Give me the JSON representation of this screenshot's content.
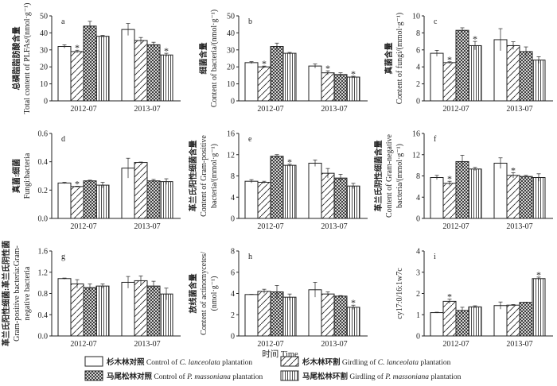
{
  "chart_data": [
    {
      "id": "a",
      "type": "bar",
      "letter": "a",
      "ylabel": [
        "总磷脂脂肪酸含量",
        "Total content of PLFAs/(nmol·g⁻¹)"
      ],
      "ylim": [
        0,
        50
      ],
      "yticks": [
        "0",
        "10",
        "20",
        "30",
        "40",
        "50"
      ],
      "categories": [
        "2012-07",
        "2013-07"
      ],
      "series": [
        {
          "name": "control_cl",
          "values": [
            32,
            42
          ],
          "errors": [
            1,
            3.5
          ],
          "sig": [
            false,
            false
          ]
        },
        {
          "name": "girdling_cl",
          "values": [
            29,
            35.5
          ],
          "errors": [
            0.8,
            1.8
          ],
          "sig": [
            true,
            false
          ]
        },
        {
          "name": "control_pm",
          "values": [
            44,
            33
          ],
          "errors": [
            2.8,
            1.5
          ],
          "sig": [
            false,
            false
          ]
        },
        {
          "name": "girdling_pm",
          "values": [
            38,
            27
          ],
          "errors": [
            0.5,
            1
          ],
          "sig": [
            false,
            true
          ]
        }
      ]
    },
    {
      "id": "b",
      "type": "bar",
      "letter": "b",
      "ylabel": [
        "细菌含量",
        "Content of bacteria/(nmol·g⁻¹)"
      ],
      "ylim": [
        0,
        50
      ],
      "yticks": [
        "0",
        "10",
        "20",
        "30",
        "40",
        "50"
      ],
      "categories": [
        "2012-07",
        "2013-07"
      ],
      "series": [
        {
          "name": "control_cl",
          "values": [
            22.5,
            20.5
          ],
          "errors": [
            0.6,
            1.2
          ],
          "sig": [
            false,
            false
          ]
        },
        {
          "name": "girdling_cl",
          "values": [
            20,
            16.5
          ],
          "errors": [
            0.5,
            1.2
          ],
          "sig": [
            true,
            true
          ]
        },
        {
          "name": "control_pm",
          "values": [
            32,
            15.5
          ],
          "errors": [
            2,
            1
          ],
          "sig": [
            false,
            false
          ]
        },
        {
          "name": "girdling_pm",
          "values": [
            28,
            14
          ],
          "errors": [
            0.5,
            0.5
          ],
          "sig": [
            false,
            true
          ]
        }
      ]
    },
    {
      "id": "c",
      "type": "bar",
      "letter": "c",
      "ylabel": [
        "真菌含量",
        "Content of fungi/(mmol·g⁻¹)"
      ],
      "ylim": [
        0,
        10
      ],
      "yticks": [
        "0",
        "2",
        "4",
        "6",
        "8",
        "10"
      ],
      "categories": [
        "2012-07",
        "2013-07"
      ],
      "series": [
        {
          "name": "control_cl",
          "values": [
            5.6,
            7.2
          ],
          "errors": [
            0.35,
            1.3
          ],
          "sig": [
            false,
            false
          ]
        },
        {
          "name": "girdling_cl",
          "values": [
            4.5,
            6.5
          ],
          "errors": [
            0.1,
            0.45
          ],
          "sig": [
            true,
            false
          ]
        },
        {
          "name": "control_pm",
          "values": [
            8.3,
            5.8
          ],
          "errors": [
            0.3,
            0.55
          ],
          "sig": [
            false,
            false
          ]
        },
        {
          "name": "girdling_pm",
          "values": [
            6.5,
            4.8
          ],
          "errors": [
            0.5,
            0.4
          ],
          "sig": [
            true,
            false
          ]
        }
      ]
    },
    {
      "id": "d",
      "type": "bar",
      "letter": "d",
      "ylabel": [
        "真菌:细菌",
        "Fungi:bacteria"
      ],
      "ylim": [
        0,
        0.6
      ],
      "yticks": [
        "0.0",
        "0.2",
        "0.4",
        "0.6"
      ],
      "categories": [
        "2012-07",
        "2013-07"
      ],
      "series": [
        {
          "name": "control_cl",
          "values": [
            0.25,
            0.355
          ],
          "errors": [
            0.005,
            0.07
          ],
          "sig": [
            false,
            false
          ]
        },
        {
          "name": "girdling_cl",
          "values": [
            0.225,
            0.395
          ],
          "errors": [
            0.003,
            0.003
          ],
          "sig": [
            true,
            false
          ]
        },
        {
          "name": "control_pm",
          "values": [
            0.265,
            0.265
          ],
          "errors": [
            0.005,
            0.01
          ],
          "sig": [
            false,
            false
          ]
        },
        {
          "name": "girdling_pm",
          "values": [
            0.235,
            0.26
          ],
          "errors": [
            0.02,
            0.02
          ],
          "sig": [
            false,
            false
          ]
        }
      ]
    },
    {
      "id": "e",
      "type": "bar",
      "letter": "e",
      "ylabel": [
        "革兰氏阳性细菌含量",
        "Content of Gram-positive",
        "bacteria/(mmol·g⁻¹)"
      ],
      "ylim": [
        0,
        16
      ],
      "yticks": [
        "0",
        "4",
        "8",
        "12",
        "16"
      ],
      "categories": [
        "2012-07",
        "2013-07"
      ],
      "series": [
        {
          "name": "control_cl",
          "values": [
            7.0,
            10.4
          ],
          "errors": [
            0.3,
            0.6
          ],
          "sig": [
            false,
            false
          ]
        },
        {
          "name": "girdling_cl",
          "values": [
            6.8,
            8.5
          ],
          "errors": [
            0.2,
            0.9
          ],
          "sig": [
            false,
            false
          ]
        },
        {
          "name": "control_pm",
          "values": [
            11.7,
            7.6
          ],
          "errors": [
            0.3,
            0.7
          ],
          "sig": [
            false,
            false
          ]
        },
        {
          "name": "girdling_pm",
          "values": [
            10.0,
            6.1
          ],
          "errors": [
            0.2,
            0.5
          ],
          "sig": [
            true,
            false
          ]
        }
      ]
    },
    {
      "id": "f",
      "type": "bar",
      "letter": "f",
      "ylabel": [
        "革兰氏阴性细菌含量",
        "Content of Gram-negative",
        "bacteria/(mmol·g⁻¹)"
      ],
      "ylim": [
        0,
        16
      ],
      "yticks": [
        "0",
        "4",
        "8",
        "12",
        "16"
      ],
      "categories": [
        "2012-07",
        "2013-07"
      ],
      "series": [
        {
          "name": "control_cl",
          "values": [
            7.7,
            10.4
          ],
          "errors": [
            0.4,
            1.0
          ],
          "sig": [
            false,
            false
          ]
        },
        {
          "name": "girdling_cl",
          "values": [
            6.6,
            8.1
          ],
          "errors": [
            0.4,
            0.5
          ],
          "sig": [
            true,
            true
          ]
        },
        {
          "name": "control_pm",
          "values": [
            10.7,
            7.9
          ],
          "errors": [
            1.2,
            0.2
          ],
          "sig": [
            false,
            false
          ]
        },
        {
          "name": "girdling_pm",
          "values": [
            9.3,
            7.7
          ],
          "errors": [
            0.3,
            0.7
          ],
          "sig": [
            false,
            false
          ]
        }
      ]
    },
    {
      "id": "g",
      "type": "bar",
      "letter": "g",
      "ylabel": [
        "革兰氏阳性细菌:革兰氏阴性菌",
        "Gram-positive bacteria:Gram-",
        "negative bacteria"
      ],
      "ylim": [
        0,
        1.6
      ],
      "yticks": [
        "0.0",
        "0.4",
        "0.8",
        "1.2",
        "1.6"
      ],
      "categories": [
        "2012-07",
        "2013-07"
      ],
      "series": [
        {
          "name": "control_cl",
          "values": [
            1.08,
            1.01
          ],
          "errors": [
            0.01,
            0.11
          ],
          "sig": [
            false,
            false
          ]
        },
        {
          "name": "girdling_cl",
          "values": [
            0.98,
            1.04
          ],
          "errors": [
            0.08,
            0.09
          ],
          "sig": [
            false,
            false
          ]
        },
        {
          "name": "control_pm",
          "values": [
            0.91,
            0.94
          ],
          "errors": [
            0.07,
            0.09
          ],
          "sig": [
            false,
            false
          ]
        },
        {
          "name": "girdling_pm",
          "values": [
            0.94,
            0.79
          ],
          "errors": [
            0.04,
            0.11
          ],
          "sig": [
            false,
            false
          ]
        }
      ]
    },
    {
      "id": "h",
      "type": "bar",
      "letter": "h",
      "ylabel": [
        "放线菌含量",
        "Content of actinomycetes/",
        "(nmol·g⁻¹)"
      ],
      "ylim": [
        0,
        8
      ],
      "yticks": [
        "0",
        "2",
        "4",
        "6",
        "8"
      ],
      "categories": [
        "2012-07",
        "2013-07"
      ],
      "series": [
        {
          "name": "control_cl",
          "values": [
            3.9,
            4.35
          ],
          "errors": [
            0.02,
            0.7
          ],
          "sig": [
            false,
            false
          ]
        },
        {
          "name": "girdling_cl",
          "values": [
            4.2,
            3.95
          ],
          "errors": [
            0.2,
            0.2
          ],
          "sig": [
            false,
            false
          ]
        },
        {
          "name": "control_pm",
          "values": [
            4.15,
            3.75
          ],
          "errors": [
            0.6,
            0.05
          ],
          "sig": [
            false,
            false
          ]
        },
        {
          "name": "girdling_pm",
          "values": [
            3.65,
            2.7
          ],
          "errors": [
            0.3,
            0.2
          ],
          "sig": [
            false,
            true
          ]
        }
      ]
    },
    {
      "id": "i",
      "type": "bar",
      "letter": "i",
      "ylabel": [
        "cy17:0/16:1w7c"
      ],
      "ylim": [
        0,
        4
      ],
      "yticks": [
        "0",
        "1",
        "2",
        "3",
        "4"
      ],
      "categories": [
        "2012-07",
        "2013-07"
      ],
      "series": [
        {
          "name": "control_cl",
          "values": [
            1.1,
            1.43
          ],
          "errors": [
            0.02,
            0.17
          ],
          "sig": [
            false,
            false
          ]
        },
        {
          "name": "girdling_cl",
          "values": [
            1.63,
            1.45
          ],
          "errors": [
            0.1,
            0.03
          ],
          "sig": [
            true,
            false
          ]
        },
        {
          "name": "control_pm",
          "values": [
            1.2,
            1.58
          ],
          "errors": [
            0.15,
            0.01
          ],
          "sig": [
            false,
            false
          ]
        },
        {
          "name": "girdling_pm",
          "values": [
            1.37,
            2.7
          ],
          "errors": [
            0.05,
            0.07
          ],
          "sig": [
            false,
            true
          ]
        }
      ]
    }
  ],
  "xlabel": "时间 Time",
  "sig_marker": "*",
  "legend": [
    {
      "series": "control_cl",
      "cn": "杉木林对照",
      "en_pre": "Control of ",
      "species": "C. lanceolata",
      "en_post": " plantation"
    },
    {
      "series": "girdling_cl",
      "cn": "杉木林环割",
      "en_pre": "Girdling of ",
      "species": "C. lanceolata",
      "en_post": " plantation"
    },
    {
      "series": "control_pm",
      "cn": "马尾松林对照",
      "en_pre": "Control of ",
      "species": "P. massoniana",
      "en_post": " plantation"
    },
    {
      "series": "girdling_pm",
      "cn": "马尾松林环割",
      "en_pre": "Girdling of ",
      "species": "P. massoniana",
      "en_post": " plantation"
    }
  ],
  "colors": {
    "axis": "#222222",
    "bar_fill": "#ffffff",
    "pattern": "#222222"
  }
}
